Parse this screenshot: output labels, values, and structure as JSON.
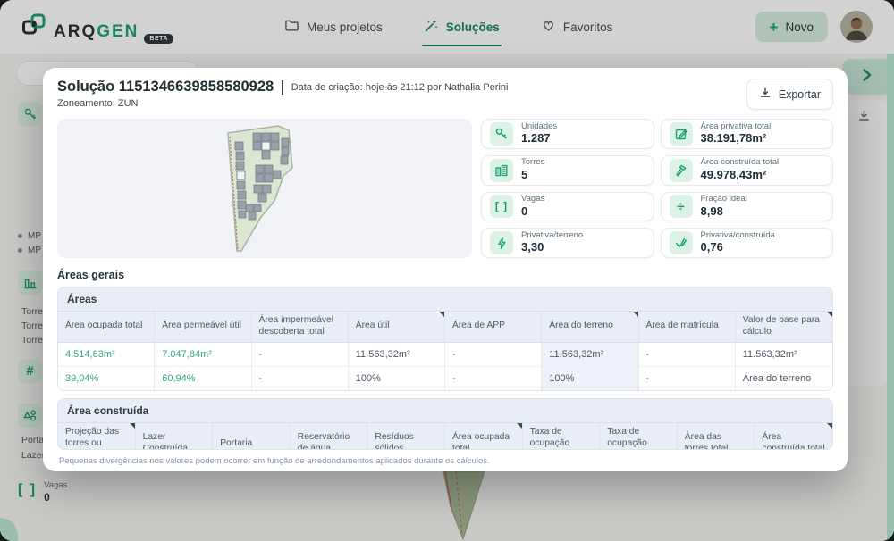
{
  "glyphs": {
    "plus": "+",
    "hash": "#",
    "divide": "÷",
    "brackets": "[ ]"
  },
  "nav": {
    "brand_primary": "ARQ",
    "brand_secondary": "GEN",
    "brand_badge": "BETA",
    "items": [
      {
        "label": "Meus projetos",
        "icon": "folder-icon",
        "active": false
      },
      {
        "label": "Soluções",
        "icon": "wand-icon",
        "active": true
      },
      {
        "label": "Favoritos",
        "icon": "heart-icon",
        "active": false
      }
    ],
    "new_label": "Novo"
  },
  "sidebar": {
    "bullet_items": [
      "MP",
      "MP"
    ],
    "torre_items": [
      "Torre C",
      "Torre C",
      "Torre C"
    ],
    "bottom_items": [
      "Portari",
      "Lazer e"
    ],
    "vagas_label": "Vagas",
    "vagas_value": "0"
  },
  "modal": {
    "title": "Solução 1151346639858580928",
    "meta": "Data de criação: hoje às 21:12 por Nathalia Perini",
    "zoning": "Zoneamento: ZUN",
    "export_label": "Exportar",
    "stats": [
      {
        "label": "Unidades",
        "value": "1.287",
        "icon": "key-icon"
      },
      {
        "label": "Área privativa total",
        "value": "38.191,78m²",
        "icon": "edit-icon"
      },
      {
        "label": "Torres",
        "value": "5",
        "icon": "towers-icon"
      },
      {
        "label": "Área construída total",
        "value": "49.978,43m²",
        "icon": "hammer-icon"
      },
      {
        "label": "Vagas",
        "value": "0",
        "icon": "brackets-icon"
      },
      {
        "label": "Fração ideal",
        "value": "8,98",
        "icon": "divide-icon"
      },
      {
        "label": "Privativa/terreno",
        "value": "3,30",
        "icon": "bolt-icon"
      },
      {
        "label": "Privativa/construída",
        "value": "0,76",
        "icon": "check-icon"
      }
    ],
    "section_title": "Áreas gerais",
    "tables": [
      {
        "title": "Áreas",
        "highlight_col": 5,
        "columns": [
          {
            "label": "Área ocupada total",
            "marked": false
          },
          {
            "label": "Área permeável útil",
            "marked": false
          },
          {
            "label": "Área impermeável descoberta total",
            "marked": false
          },
          {
            "label": "Área útil",
            "marked": true
          },
          {
            "label": "Área de APP",
            "marked": false
          },
          {
            "label": "Área do terreno",
            "marked": true
          },
          {
            "label": "Área de matrícula",
            "marked": false
          },
          {
            "label": "Valor de base para cálculo",
            "marked": true
          }
        ],
        "rows": [
          [
            {
              "text": "4.514,63m²",
              "green": true
            },
            {
              "text": "7.047,84m²",
              "green": true
            },
            {
              "text": "-",
              "green": false
            },
            {
              "text": "11.563,32m²",
              "green": false
            },
            {
              "text": "-",
              "green": false
            },
            {
              "text": "11.563,32m²",
              "green": false
            },
            {
              "text": "-",
              "green": false
            },
            {
              "text": "11.563,32m²",
              "green": false
            }
          ],
          [
            {
              "text": "39,04%",
              "green": true
            },
            {
              "text": "60,94%",
              "green": true
            },
            {
              "text": "-",
              "green": false
            },
            {
              "text": "100%",
              "green": false
            },
            {
              "text": "-",
              "green": false
            },
            {
              "text": "100%",
              "green": false
            },
            {
              "text": "-",
              "green": false
            },
            {
              "text": "Área do terreno",
              "green": false
            }
          ]
        ]
      },
      {
        "title": "Área construída",
        "highlight_col": -1,
        "columns": [
          {
            "label": "Projeção das torres ou Térreo",
            "marked": true
          },
          {
            "label": "Lazer Construída",
            "marked": false
          },
          {
            "label": "Portaria",
            "marked": false
          },
          {
            "label": "Reservatório de água",
            "marked": false
          },
          {
            "label": "Resíduos sólidos",
            "marked": false
          },
          {
            "label": "Área ocupada total",
            "marked": true
          },
          {
            "label": "Taxa de ocupação projetada",
            "marked": false
          },
          {
            "label": "Taxa de ocupação máxima",
            "marked": false
          },
          {
            "label": "Área das torres total",
            "marked": false
          },
          {
            "label": "Área construída total",
            "marked": true
          }
        ],
        "rows": []
      }
    ],
    "footnote": "Pequenas divergências nos valores podem ocorrer em função de arredondamentos aplicados durante os cálculos."
  },
  "colors": {
    "accent_green": "#17a06a",
    "accent_dark_green": "#13865c",
    "icon_tile_bg": "#ddf2e6",
    "table_header_bg": "#e9edf4",
    "value_green": "#2fa876",
    "highlight_col_bg": "#eef1f7"
  }
}
